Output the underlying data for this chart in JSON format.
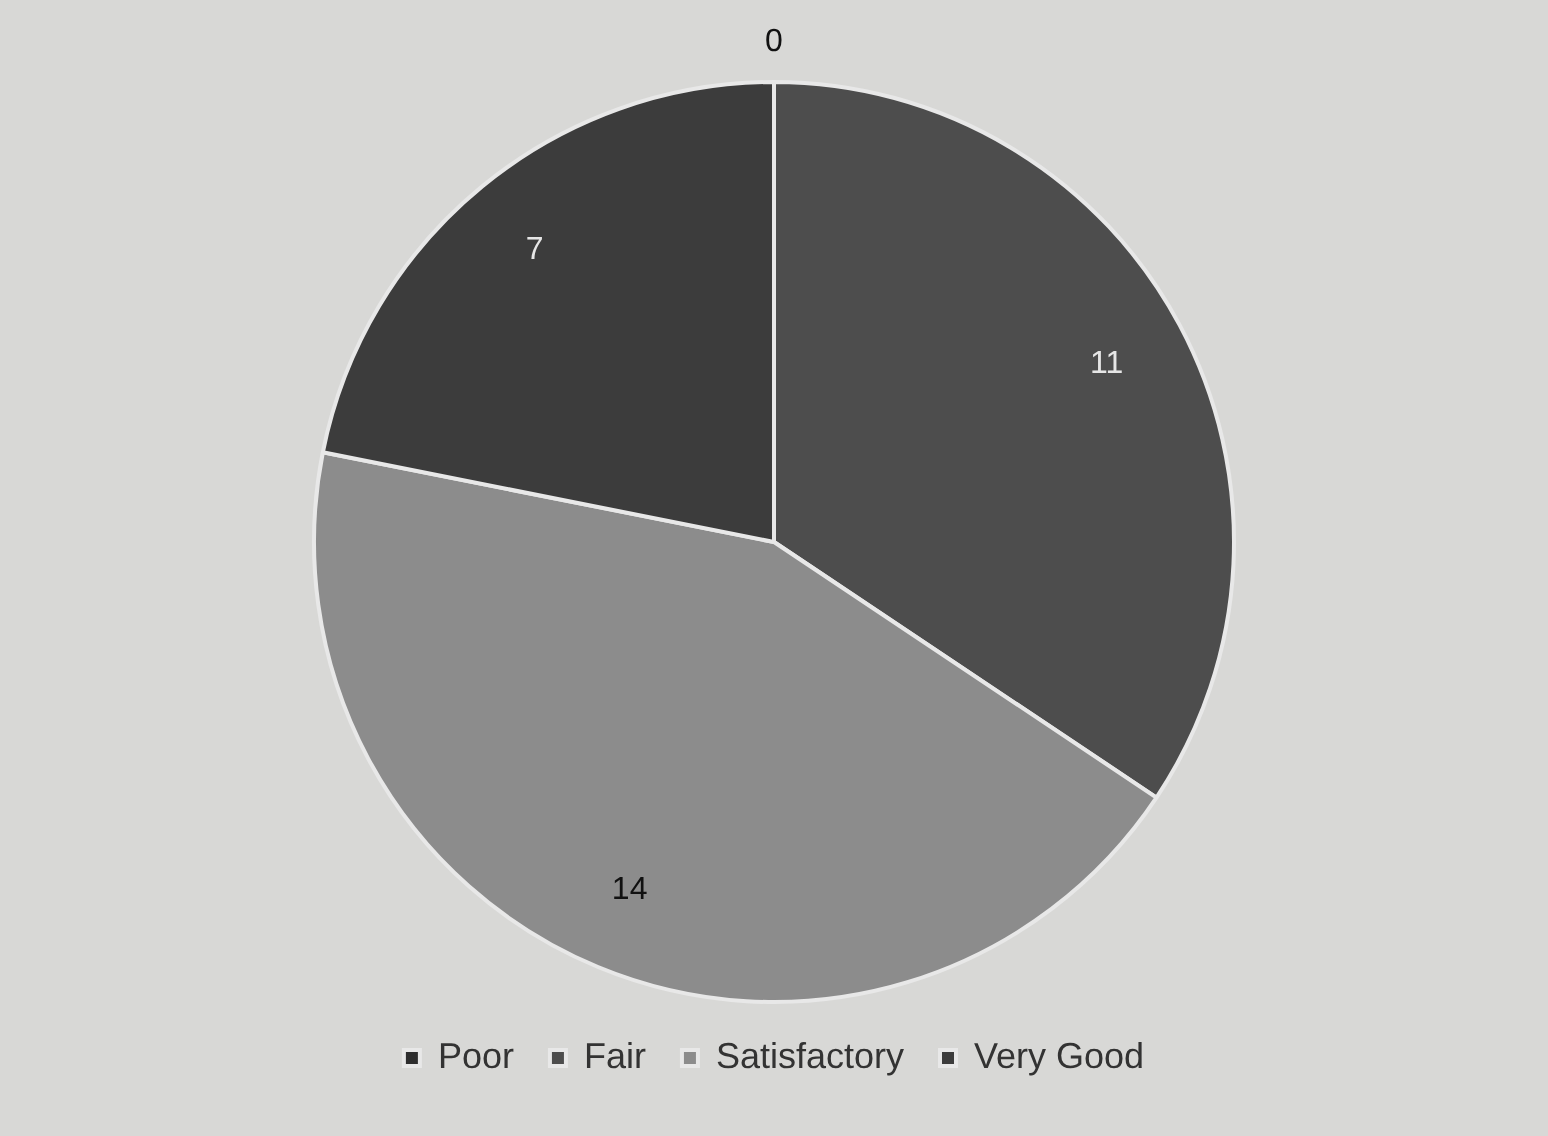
{
  "chart_data": {
    "type": "pie",
    "categories": [
      "Poor",
      "Fair",
      "Satisfactory",
      "Very Good"
    ],
    "values": [
      0,
      11,
      14,
      7
    ],
    "colors": [
      "#2e2e2e",
      "#4d4d4d",
      "#8c8c8c",
      "#3c3c3c"
    ],
    "value_labels": [
      "0",
      "11",
      "14",
      "7"
    ],
    "legend": "bottom"
  }
}
